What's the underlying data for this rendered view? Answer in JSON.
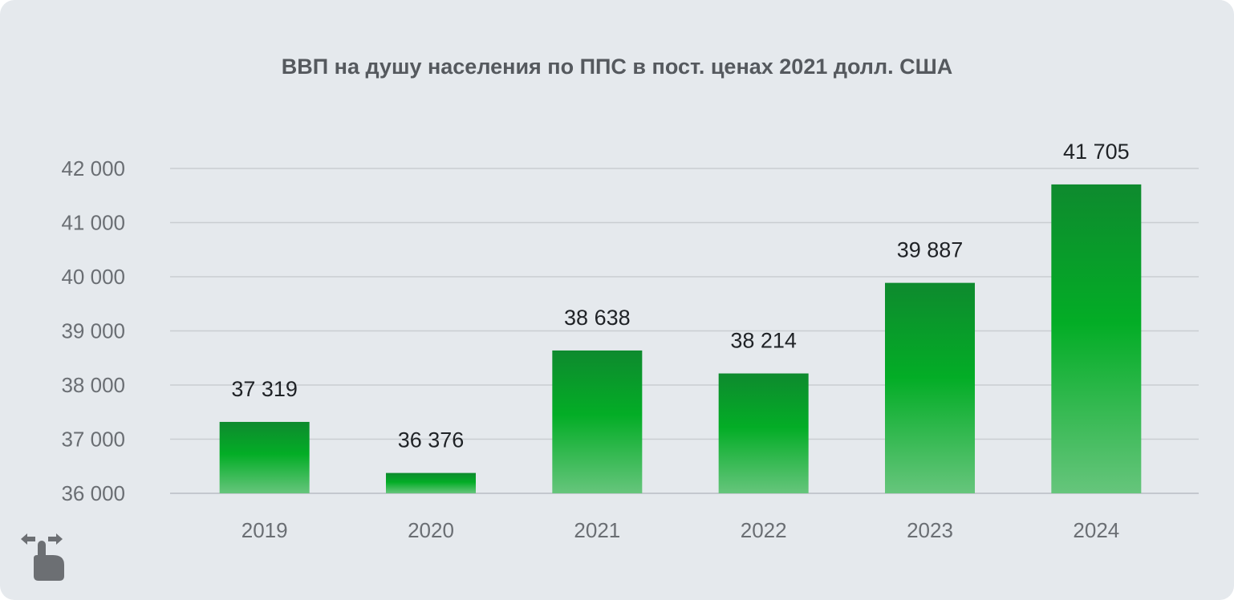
{
  "chart_data": {
    "type": "bar",
    "title": "ВВП на душу населения по ППС в пост. ценах 2021 долл. США",
    "categories": [
      "2019",
      "2020",
      "2021",
      "2022",
      "2023",
      "2024"
    ],
    "values": [
      37319,
      36376,
      38638,
      38214,
      39887,
      41705
    ],
    "value_labels": [
      "37 319",
      "36 376",
      "38 638",
      "38 214",
      "39 887",
      "41 705"
    ],
    "xlabel": "",
    "ylabel": "",
    "ylim": [
      36000,
      42000
    ],
    "yticks": [
      36000,
      37000,
      38000,
      39000,
      40000,
      41000,
      42000
    ],
    "ytick_labels": [
      "36 000",
      "37 000",
      "38 000",
      "39 000",
      "40 000",
      "41 000",
      "42 000"
    ],
    "grid": true,
    "legend": "none",
    "bar_color_top": "#0e8a2e",
    "bar_color_mid": "#03ad26",
    "bar_color_bottom": "#66c57c"
  },
  "icons": {
    "gesture": "swipe-gesture-icon"
  }
}
